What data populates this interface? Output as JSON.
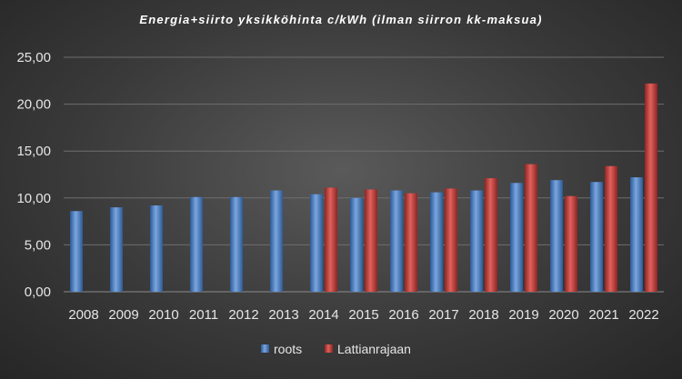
{
  "chart_data": {
    "type": "bar",
    "title": "Energia+siirto yksikköhinta c/kWh (ilman siirron kk-maksua)",
    "categories": [
      "2008",
      "2009",
      "2010",
      "2011",
      "2012",
      "2013",
      "2014",
      "2015",
      "2016",
      "2017",
      "2018",
      "2019",
      "2020",
      "2021",
      "2022"
    ],
    "series": [
      {
        "name": "roots",
        "color": "#4f81bd",
        "values": [
          8.6,
          9.0,
          9.2,
          10.1,
          10.1,
          10.8,
          10.4,
          10.0,
          10.8,
          10.6,
          10.8,
          11.6,
          11.9,
          11.7,
          12.2
        ]
      },
      {
        "name": "Lattianrajaan",
        "color": "#c0504d",
        "values": [
          null,
          null,
          null,
          null,
          null,
          null,
          11.1,
          10.9,
          10.5,
          11.0,
          12.1,
          13.6,
          10.2,
          13.4,
          22.2
        ]
      }
    ],
    "ylim": [
      0,
      25
    ],
    "yticks": [
      "0,00",
      "5,00",
      "10,00",
      "15,00",
      "20,00",
      "25,00"
    ],
    "grid": true,
    "legend_position": "bottom"
  }
}
